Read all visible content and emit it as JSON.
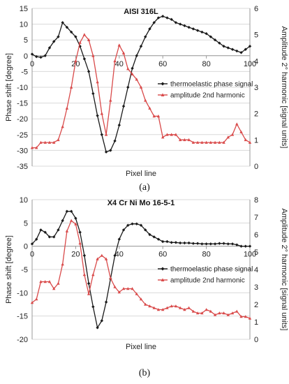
{
  "colors": {
    "phase": "#1a1a1a",
    "amplitude": "#d94a4a",
    "grid": "#d9d9d9",
    "axis": "#9a9a9a"
  },
  "chart_data": [
    {
      "type": "line",
      "caption": "(a)",
      "title": "AISI 316L",
      "xlabel": "Pixel line",
      "ylabel_left": "Phase shift [degree]",
      "ylabel_right": "Amplitude 2° harmonic [signal units]",
      "xlim": [
        0,
        100
      ],
      "ylim_left": [
        -35,
        15
      ],
      "ylim_right": [
        0,
        6
      ],
      "xticks": [
        0,
        20,
        40,
        60,
        80,
        100
      ],
      "yticks_left": [
        15,
        10,
        5,
        0,
        -5,
        -10,
        -15,
        -20,
        -25,
        -30,
        -35
      ],
      "yticks_right": [
        6,
        5,
        4,
        3,
        2,
        1,
        0
      ],
      "grid": true,
      "legend_position": "middle-right",
      "series": [
        {
          "name": "thermoelastic phase signal",
          "axis": "left",
          "marker": "diamond",
          "x": [
            0,
            2,
            4,
            6,
            8,
            10,
            12,
            14,
            16,
            18,
            20,
            22,
            24,
            26,
            28,
            30,
            32,
            34,
            36,
            38,
            40,
            42,
            44,
            46,
            48,
            50,
            52,
            54,
            56,
            58,
            60,
            62,
            64,
            66,
            68,
            70,
            72,
            74,
            76,
            78,
            80,
            82,
            84,
            86,
            88,
            90,
            92,
            94,
            96,
            98,
            100
          ],
          "y": [
            0.5,
            -0.3,
            -0.5,
            0,
            2.5,
            4.5,
            6,
            10.5,
            9,
            7.5,
            6,
            3,
            -1,
            -5,
            -12,
            -19,
            -25,
            -30.5,
            -30,
            -27,
            -22,
            -16,
            -10,
            -4,
            0,
            3,
            6,
            8.5,
            10.5,
            12,
            12.5,
            12,
            11.5,
            10.5,
            10,
            9.5,
            9,
            8.5,
            8,
            7.5,
            7,
            6,
            5,
            4,
            3,
            2.5,
            2,
            1.5,
            1,
            2,
            3
          ]
        },
        {
          "name": "amplitude 2nd harmonic",
          "axis": "right",
          "marker": "triangle",
          "x": [
            0,
            2,
            4,
            6,
            8,
            10,
            12,
            14,
            16,
            18,
            20,
            22,
            24,
            26,
            28,
            30,
            32,
            34,
            36,
            38,
            40,
            42,
            44,
            46,
            48,
            50,
            52,
            54,
            56,
            58,
            60,
            62,
            64,
            66,
            68,
            70,
            72,
            74,
            76,
            78,
            80,
            82,
            84,
            86,
            88,
            90,
            92,
            94,
            96,
            98,
            100
          ],
          "y": [
            0.7,
            0.7,
            0.9,
            0.9,
            0.9,
            0.9,
            1.0,
            1.5,
            2.2,
            3.0,
            4.0,
            4.7,
            5.0,
            4.8,
            4.2,
            3.2,
            2.0,
            1.2,
            2.5,
            4.0,
            4.6,
            4.3,
            3.7,
            3.5,
            3.3,
            3.0,
            2.5,
            2.2,
            1.9,
            1.9,
            1.1,
            1.2,
            1.2,
            1.2,
            1.0,
            1.0,
            1.0,
            0.9,
            0.9,
            0.9,
            0.9,
            0.9,
            0.9,
            0.9,
            0.9,
            1.1,
            1.2,
            1.6,
            1.3,
            1.0,
            0.9
          ]
        }
      ]
    },
    {
      "type": "line",
      "caption": "(b)",
      "title": "X4 Cr Ni Mo 16-5-1",
      "xlabel": "Pixel line",
      "ylabel_left": "Phase shift [degree]",
      "ylabel_right": "Amplitude 2° harmonic [signal units]",
      "xlim": [
        0,
        100
      ],
      "ylim_left": [
        -20,
        10
      ],
      "ylim_right": [
        0,
        8
      ],
      "xticks": [
        0,
        20,
        40,
        60,
        80,
        100
      ],
      "yticks_left": [
        10,
        5,
        0,
        -5,
        -10,
        -15,
        -20
      ],
      "yticks_right": [
        8,
        7,
        6,
        5,
        4,
        3,
        2,
        1,
        0
      ],
      "grid": true,
      "legend_position": "middle-right",
      "series": [
        {
          "name": "thermoelastic phase signal",
          "axis": "left",
          "marker": "diamond",
          "x": [
            0,
            2,
            4,
            6,
            8,
            10,
            12,
            14,
            16,
            18,
            20,
            22,
            24,
            26,
            28,
            30,
            32,
            34,
            36,
            38,
            40,
            42,
            44,
            46,
            48,
            50,
            52,
            54,
            56,
            58,
            60,
            62,
            64,
            66,
            68,
            70,
            72,
            74,
            76,
            78,
            80,
            82,
            84,
            86,
            88,
            90,
            92,
            94,
            96,
            98,
            100
          ],
          "y": [
            0.5,
            1.5,
            3.5,
            3,
            2,
            2,
            3.5,
            5.5,
            7.5,
            7.5,
            6,
            3,
            -2,
            -8,
            -13,
            -17.5,
            -16,
            -12,
            -7,
            -2,
            1.5,
            3.5,
            4.5,
            4.8,
            4.8,
            4.5,
            3.5,
            2.5,
            2,
            1.5,
            1,
            1,
            0.8,
            0.8,
            0.7,
            0.7,
            0.7,
            0.6,
            0.6,
            0.5,
            0.5,
            0.5,
            0.5,
            0.6,
            0.6,
            0.5,
            0.5,
            0.3,
            0,
            0,
            0
          ]
        },
        {
          "name": "amplitude 2nd harmonic",
          "axis": "right",
          "marker": "triangle",
          "x": [
            0,
            2,
            4,
            6,
            8,
            10,
            12,
            14,
            16,
            18,
            20,
            22,
            24,
            26,
            28,
            30,
            32,
            34,
            36,
            38,
            40,
            42,
            44,
            46,
            48,
            50,
            52,
            54,
            56,
            58,
            60,
            62,
            64,
            66,
            68,
            70,
            72,
            74,
            76,
            78,
            80,
            82,
            84,
            86,
            88,
            90,
            92,
            94,
            96,
            98,
            100
          ],
          "y": [
            2.1,
            2.3,
            3.3,
            3.3,
            3.3,
            2.9,
            3.2,
            4.3,
            6.2,
            6.8,
            6.6,
            5.5,
            3.7,
            2.6,
            3.7,
            4.6,
            4.8,
            4.6,
            3.5,
            3.0,
            2.7,
            2.9,
            2.9,
            2.9,
            2.6,
            2.3,
            2.0,
            1.9,
            1.8,
            1.7,
            1.7,
            1.8,
            1.9,
            1.9,
            1.8,
            1.7,
            1.8,
            1.6,
            1.5,
            1.5,
            1.7,
            1.6,
            1.4,
            1.5,
            1.5,
            1.4,
            1.5,
            1.6,
            1.3,
            1.3,
            1.2
          ]
        }
      ]
    }
  ]
}
